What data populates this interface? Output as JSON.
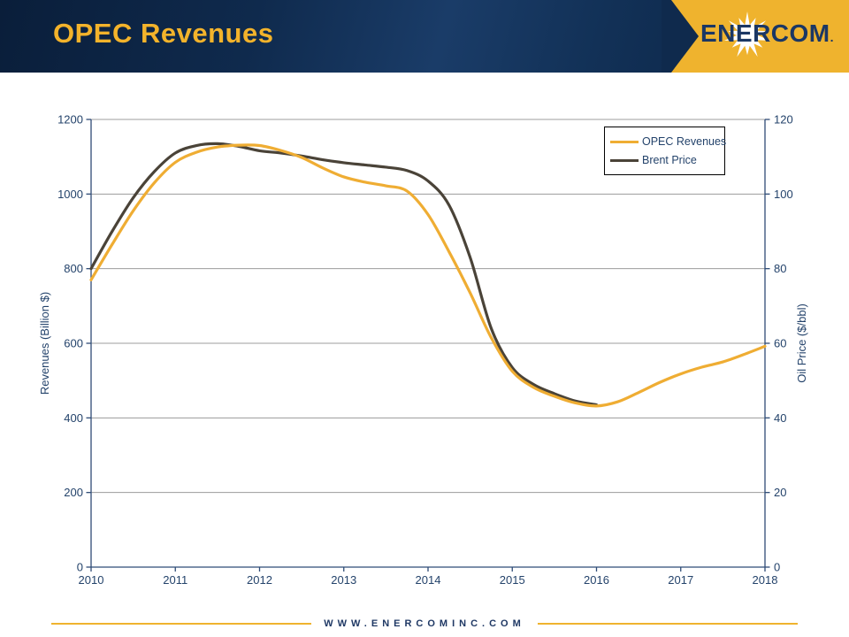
{
  "slide": {
    "title": "OPEC Revenues",
    "logo": {
      "text": "ENERCOM",
      "tm": "."
    },
    "footer": "WWW.ENERCOMINC.COM"
  },
  "colors": {
    "header_navy": "#0F2A4D",
    "accent_gold": "#EFB32E",
    "title_gold": "#F3B32B",
    "logo_text_navy": "#1B3764",
    "axis_line": "#2F4C77",
    "gridline": "#9C9C9C",
    "tick_text": "#24436B",
    "series_opec": "#EFAD33",
    "series_brent": "#4A4338"
  },
  "chart_data": {
    "type": "line",
    "title": "",
    "grid": true,
    "legend_position": "top-right",
    "x_axis": {
      "label": "",
      "range": [
        2010,
        2018
      ],
      "ticks": [
        2010,
        2011,
        2012,
        2013,
        2014,
        2015,
        2016,
        2017,
        2018
      ]
    },
    "y_left": {
      "label": "Revenues (Billion $)",
      "range": [
        0,
        1200
      ],
      "ticks": [
        0,
        200,
        400,
        600,
        800,
        1000,
        1200
      ]
    },
    "y_right": {
      "label": "Oil Price ($/bbl)",
      "range": [
        0,
        120
      ],
      "ticks": [
        0,
        20,
        40,
        60,
        80,
        100,
        120
      ]
    },
    "series": [
      {
        "name": "OPEC Revenues",
        "axis": "left",
        "color": "#EFAD33",
        "units": "billion $",
        "points": [
          [
            2010.0,
            770
          ],
          [
            2010.25,
            865
          ],
          [
            2010.5,
            955
          ],
          [
            2010.75,
            1030
          ],
          [
            2011.0,
            1085
          ],
          [
            2011.25,
            1112
          ],
          [
            2011.5,
            1126
          ],
          [
            2011.75,
            1131
          ],
          [
            2012.0,
            1130
          ],
          [
            2012.25,
            1117
          ],
          [
            2012.5,
            1098
          ],
          [
            2012.75,
            1070
          ],
          [
            2013.0,
            1046
          ],
          [
            2013.25,
            1032
          ],
          [
            2013.5,
            1022
          ],
          [
            2013.75,
            1008
          ],
          [
            2014.0,
            945
          ],
          [
            2014.25,
            845
          ],
          [
            2014.5,
            735
          ],
          [
            2014.75,
            615
          ],
          [
            2015.0,
            525
          ],
          [
            2015.25,
            482
          ],
          [
            2015.5,
            458
          ],
          [
            2015.75,
            440
          ],
          [
            2016.0,
            432
          ],
          [
            2016.25,
            443
          ],
          [
            2016.5,
            468
          ],
          [
            2016.75,
            495
          ],
          [
            2017.0,
            518
          ],
          [
            2017.25,
            536
          ],
          [
            2017.5,
            550
          ],
          [
            2017.75,
            570
          ],
          [
            2018.0,
            592
          ]
        ]
      },
      {
        "name": "Brent Price",
        "axis": "right",
        "color": "#4A4338",
        "units": "$/bbl",
        "points": [
          [
            2010.0,
            80
          ],
          [
            2010.25,
            90
          ],
          [
            2010.5,
            99
          ],
          [
            2010.75,
            106
          ],
          [
            2011.0,
            111
          ],
          [
            2011.25,
            113.0
          ],
          [
            2011.5,
            113.5
          ],
          [
            2011.75,
            112.8
          ],
          [
            2012.0,
            111.6
          ],
          [
            2012.25,
            111.0
          ],
          [
            2012.5,
            110.2
          ],
          [
            2012.75,
            109.2
          ],
          [
            2013.0,
            108.4
          ],
          [
            2013.25,
            107.8
          ],
          [
            2013.5,
            107.2
          ],
          [
            2013.75,
            106.3
          ],
          [
            2014.0,
            103.5
          ],
          [
            2014.25,
            97
          ],
          [
            2014.5,
            83
          ],
          [
            2014.75,
            64
          ],
          [
            2015.0,
            53.5
          ],
          [
            2015.25,
            49
          ],
          [
            2015.5,
            46.5
          ],
          [
            2015.75,
            44.5
          ],
          [
            2016.0,
            43.5
          ]
        ]
      }
    ]
  }
}
